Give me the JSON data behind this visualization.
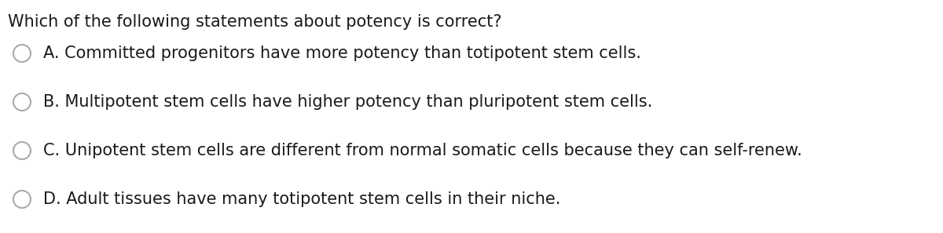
{
  "background_color": "#ffffff",
  "question": "Which of the following statements about potency is correct?",
  "question_fontsize": 15,
  "question_color": "#1a1a1a",
  "options": [
    "A. Committed progenitors have more potency than totipotent stem cells.",
    "B. Multipotent stem cells have higher potency than pluripotent stem cells.",
    "C. Unipotent stem cells are different from normal somatic cells because they can self-renew.",
    "D. Adult tissues have many totipotent stem cells in their niche."
  ],
  "option_fontsize": 15,
  "option_color": "#1a1a1a",
  "circle_color": "#aaaaaa",
  "circle_linewidth": 1.5,
  "font_family": "DejaVu Sans"
}
